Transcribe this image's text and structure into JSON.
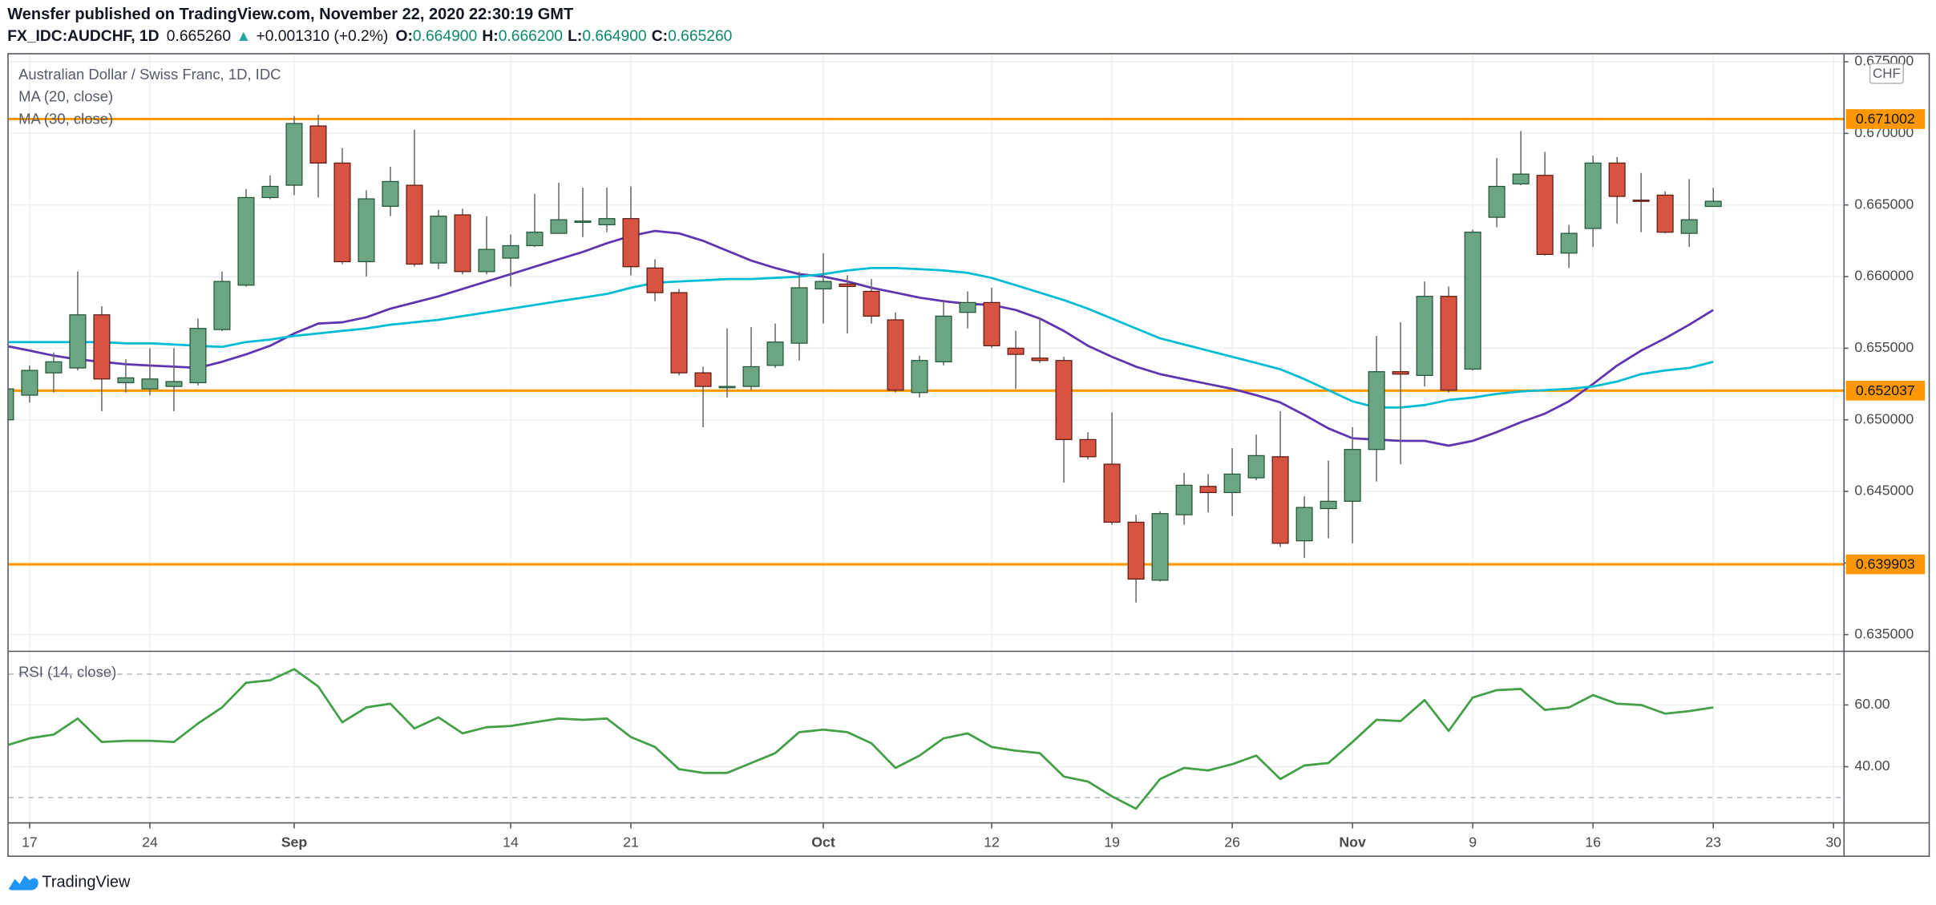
{
  "header": {
    "published": "Wensfer published on TradingView.com, November 22, 2020 22:30:19 GMT",
    "symbol": "FX_IDC:AUDCHF, 1D",
    "last": "0.665260",
    "arrow": "▲",
    "change": "+0.001310 (+0.2%)",
    "ohlc": [
      {
        "label": "O:",
        "value": "0.664900"
      },
      {
        "label": "H:",
        "value": "0.666200"
      },
      {
        "label": "L:",
        "value": "0.664900"
      },
      {
        "label": "C:",
        "value": "0.665260"
      }
    ]
  },
  "chart_data": [
    {
      "type": "candlestick",
      "title": "Australian Dollar / Swiss Franc, 1D, IDC",
      "currency": "CHF",
      "categories": [
        null,
        "17",
        null,
        null,
        null,
        null,
        "24",
        null,
        null,
        null,
        null,
        null,
        "Sep",
        null,
        null,
        null,
        null,
        null,
        null,
        null,
        null,
        "14",
        null,
        null,
        null,
        null,
        "21",
        null,
        null,
        null,
        null,
        null,
        null,
        null,
        "Oct",
        null,
        null,
        null,
        null,
        null,
        null,
        "12",
        null,
        null,
        null,
        null,
        "19",
        null,
        null,
        null,
        null,
        "26",
        null,
        null,
        null,
        null,
        "Nov",
        null,
        null,
        null,
        null,
        "9",
        null,
        null,
        null,
        null,
        "16",
        null,
        null,
        null,
        null,
        "23",
        null,
        null,
        null,
        null,
        "30"
      ],
      "open": [
        0.65,
        0.65172,
        0.65328,
        0.65362,
        0.65733,
        0.65259,
        0.65216,
        0.65233,
        0.65259,
        0.6563,
        0.6594,
        0.66552,
        0.66638,
        0.67052,
        0.66793,
        0.66104,
        0.66491,
        0.66638,
        0.66095,
        0.66431,
        0.66035,
        0.66129,
        0.66216,
        0.66302,
        0.66379,
        0.66362,
        0.66405,
        0.6606,
        0.65888,
        0.65328,
        0.65224,
        0.65233,
        0.6538,
        0.65535,
        0.65914,
        0.65948,
        0.65897,
        0.65698,
        0.6519,
        0.65405,
        0.6575,
        0.65819,
        0.655,
        0.65431,
        0.65414,
        0.64862,
        0.6469,
        0.64285,
        0.6388,
        0.64337,
        0.64535,
        0.64492,
        0.64595,
        0.64742,
        0.64155,
        0.6438,
        0.64431,
        0.64793,
        0.65336,
        0.6531,
        0.65862,
        0.65354,
        0.66414,
        0.66647,
        0.66707,
        0.66164,
        0.66336,
        0.66793,
        0.66534,
        0.66569,
        0.66302,
        0.6649,
        null,
        null,
        null,
        null,
        null
      ],
      "high": [
        0.6525,
        0.6538,
        0.6547,
        0.66035,
        0.65793,
        0.65422,
        0.655,
        0.655,
        0.65707,
        0.66035,
        0.66612,
        0.66707,
        0.67121,
        0.67129,
        0.66897,
        0.66603,
        0.66767,
        0.67026,
        0.66466,
        0.66474,
        0.66422,
        0.66293,
        0.66578,
        0.66655,
        0.66621,
        0.66621,
        0.6663,
        0.66121,
        0.65914,
        0.65371,
        0.65638,
        0.65647,
        0.65672,
        0.66035,
        0.66164,
        0.66009,
        0.65983,
        0.6575,
        0.65448,
        0.65828,
        0.65897,
        0.65922,
        0.65621,
        0.65716,
        0.6544,
        0.64914,
        0.65052,
        0.64337,
        0.64362,
        0.6463,
        0.64621,
        0.64802,
        0.64897,
        0.6506,
        0.64466,
        0.64716,
        0.64948,
        0.65586,
        0.65681,
        0.65966,
        0.65931,
        0.66328,
        0.66828,
        0.67017,
        0.66871,
        0.66362,
        0.66845,
        0.66836,
        0.66724,
        0.66595,
        0.66681,
        0.6662,
        null,
        null,
        null,
        null,
        null
      ],
      "low": [
        0.6498,
        0.6512,
        0.6519,
        0.65345,
        0.6506,
        0.6519,
        0.6517,
        0.6506,
        0.6524,
        0.6562,
        0.6593,
        0.6654,
        0.66569,
        0.66552,
        0.66087,
        0.66,
        0.66422,
        0.6607,
        0.66052,
        0.66017,
        0.66017,
        0.65931,
        0.66207,
        0.66302,
        0.66276,
        0.6631,
        0.66009,
        0.65828,
        0.6531,
        0.64948,
        0.65155,
        0.65207,
        0.65362,
        0.65414,
        0.65672,
        0.65603,
        0.65672,
        0.6519,
        0.65155,
        0.6538,
        0.65638,
        0.655,
        0.65216,
        0.65397,
        0.64561,
        0.64724,
        0.64267,
        0.63724,
        0.63871,
        0.64267,
        0.64354,
        0.64328,
        0.64578,
        0.64112,
        0.64035,
        0.64173,
        0.64138,
        0.64569,
        0.6469,
        0.65233,
        0.6519,
        0.65345,
        0.66345,
        0.66638,
        0.66147,
        0.6606,
        0.66207,
        0.66371,
        0.6631,
        0.66302,
        0.66207,
        0.6649,
        null,
        null,
        null,
        null,
        null
      ],
      "close": [
        0.65216,
        0.65345,
        0.65405,
        0.65733,
        0.65285,
        0.65293,
        0.65285,
        0.65267,
        0.65638,
        0.65966,
        0.66552,
        0.6663,
        0.67069,
        0.66793,
        0.66104,
        0.66543,
        0.66664,
        0.66087,
        0.66422,
        0.66035,
        0.6619,
        0.66216,
        0.6631,
        0.66397,
        0.66388,
        0.66405,
        0.66069,
        0.65888,
        0.65328,
        0.65233,
        0.65233,
        0.65371,
        0.65543,
        0.65922,
        0.65966,
        0.65931,
        0.65724,
        0.65207,
        0.65414,
        0.65724,
        0.65819,
        0.65517,
        0.65457,
        0.65414,
        0.64862,
        0.64742,
        0.64285,
        0.63888,
        0.64345,
        0.64543,
        0.64492,
        0.64621,
        0.6475,
        0.64138,
        0.64388,
        0.64431,
        0.64793,
        0.65336,
        0.65319,
        0.65862,
        0.65207,
        0.6631,
        0.6663,
        0.66716,
        0.66155,
        0.66302,
        0.66793,
        0.6656,
        0.66526,
        0.6631,
        0.66397,
        0.66526,
        null,
        null,
        null,
        null,
        null
      ],
      "up_color": "#6ba583",
      "down_color": "#d75442",
      "up_border": "#225437",
      "down_border": "#5b1a13",
      "wick_color": "#6b6b6b",
      "series": [
        {
          "name": "MA (20, close)",
          "color": "#5e35b1",
          "values": [
            0.65517,
            0.65483,
            0.65448,
            0.65422,
            0.65405,
            0.65388,
            0.65379,
            0.65371,
            0.65362,
            0.65405,
            0.65457,
            0.65517,
            0.65603,
            0.65672,
            0.65681,
            0.65716,
            0.65776,
            0.65819,
            0.65862,
            0.65914,
            0.65966,
            0.66017,
            0.66069,
            0.66121,
            0.66172,
            0.66233,
            0.66284,
            0.66319,
            0.66302,
            0.6625,
            0.66181,
            0.66112,
            0.6606,
            0.66017,
            0.66,
            0.65966,
            0.65922,
            0.65888,
            0.65853,
            0.65828,
            0.6581,
            0.65802,
            0.65767,
            0.65707,
            0.65621,
            0.65517,
            0.6544,
            0.65371,
            0.65319,
            0.65284,
            0.6525,
            0.65216,
            0.65172,
            0.65121,
            0.65034,
            0.6494,
            0.64871,
            0.64862,
            0.64853,
            0.64853,
            0.64819,
            0.64853,
            0.64914,
            0.64983,
            0.65043,
            0.65129,
            0.6525,
            0.65379,
            0.65483,
            0.65569,
            0.65664,
            0.65767,
            null,
            null,
            null,
            null,
            null
          ]
        },
        {
          "name": "MA (30, close)",
          "color": "#00bcd4",
          "values": [
            0.65543,
            0.65543,
            0.65543,
            0.65543,
            0.65543,
            0.65534,
            0.65534,
            0.65526,
            0.65517,
            0.65509,
            0.65543,
            0.6556,
            0.65586,
            0.65603,
            0.65621,
            0.65638,
            0.65664,
            0.65681,
            0.65698,
            0.65724,
            0.6575,
            0.65776,
            0.65802,
            0.65828,
            0.65853,
            0.65879,
            0.65922,
            0.65957,
            0.65966,
            0.65974,
            0.65983,
            0.65983,
            0.65991,
            0.66,
            0.66017,
            0.66043,
            0.6606,
            0.6606,
            0.66052,
            0.66043,
            0.66026,
            0.65991,
            0.6594,
            0.65888,
            0.65836,
            0.65776,
            0.65707,
            0.65638,
            0.65569,
            0.65526,
            0.65483,
            0.6544,
            0.65397,
            0.65353,
            0.65284,
            0.65207,
            0.65129,
            0.65086,
            0.65086,
            0.65103,
            0.65138,
            0.65155,
            0.65181,
            0.65198,
            0.65207,
            0.65216,
            0.65233,
            0.65267,
            0.65319,
            0.65345,
            0.65362,
            0.65405,
            null,
            null,
            null,
            null,
            null
          ]
        }
      ],
      "hlines": [
        0.671002,
        0.652037,
        0.639903
      ],
      "hline_color": "#ff9800",
      "ylim": [
        0.63388,
        0.67552
      ],
      "yticks": [
        {
          "value": 0.635,
          "label": "0.635000"
        },
        {
          "value": 0.64,
          "label": "0.640000"
        },
        {
          "value": 0.645,
          "label": "0.645000"
        },
        {
          "value": 0.65,
          "label": "0.650000"
        },
        {
          "value": 0.655,
          "label": "0.655000"
        },
        {
          "value": 0.66,
          "label": "0.660000"
        },
        {
          "value": 0.665,
          "label": "0.665000"
        },
        {
          "value": 0.67,
          "label": "0.670000"
        },
        {
          "value": 0.675,
          "label": "0.675000"
        }
      ],
      "grid": true
    },
    {
      "type": "line",
      "series": [
        {
          "name": "RSI (14, close)",
          "color": "#43a047",
          "values": [
            46.8,
            49.2,
            50.4,
            55.6,
            48,
            48.4,
            48.4,
            48,
            54,
            59.2,
            67.2,
            68,
            71.6,
            66,
            54.4,
            59.2,
            60.4,
            52.4,
            56,
            50.8,
            52.8,
            53.2,
            54.4,
            55.6,
            55.2,
            55.6,
            49.6,
            46.4,
            39.2,
            38,
            38,
            41.2,
            44.4,
            51.2,
            52,
            51.2,
            47.6,
            39.6,
            43.6,
            49.2,
            50.8,
            46.4,
            45.2,
            44.4,
            36.8,
            35.2,
            30.4,
            26.4,
            36,
            39.6,
            38.8,
            40.8,
            43.6,
            36,
            40.4,
            41.2,
            48,
            55.2,
            54.8,
            61.6,
            51.6,
            62.4,
            64.8,
            65.2,
            58.4,
            59.2,
            63.2,
            60.4,
            60,
            57.2,
            58,
            59.2,
            null,
            null,
            null,
            null,
            null
          ]
        }
      ],
      "levels": [
        70,
        30
      ],
      "ylim": [
        22,
        77.2
      ],
      "yticks": [
        {
          "value": 40,
          "label": "40.00"
        },
        {
          "value": 60,
          "label": "60.00"
        }
      ],
      "grid": true
    }
  ],
  "footer": {
    "brand": "TradingView"
  }
}
